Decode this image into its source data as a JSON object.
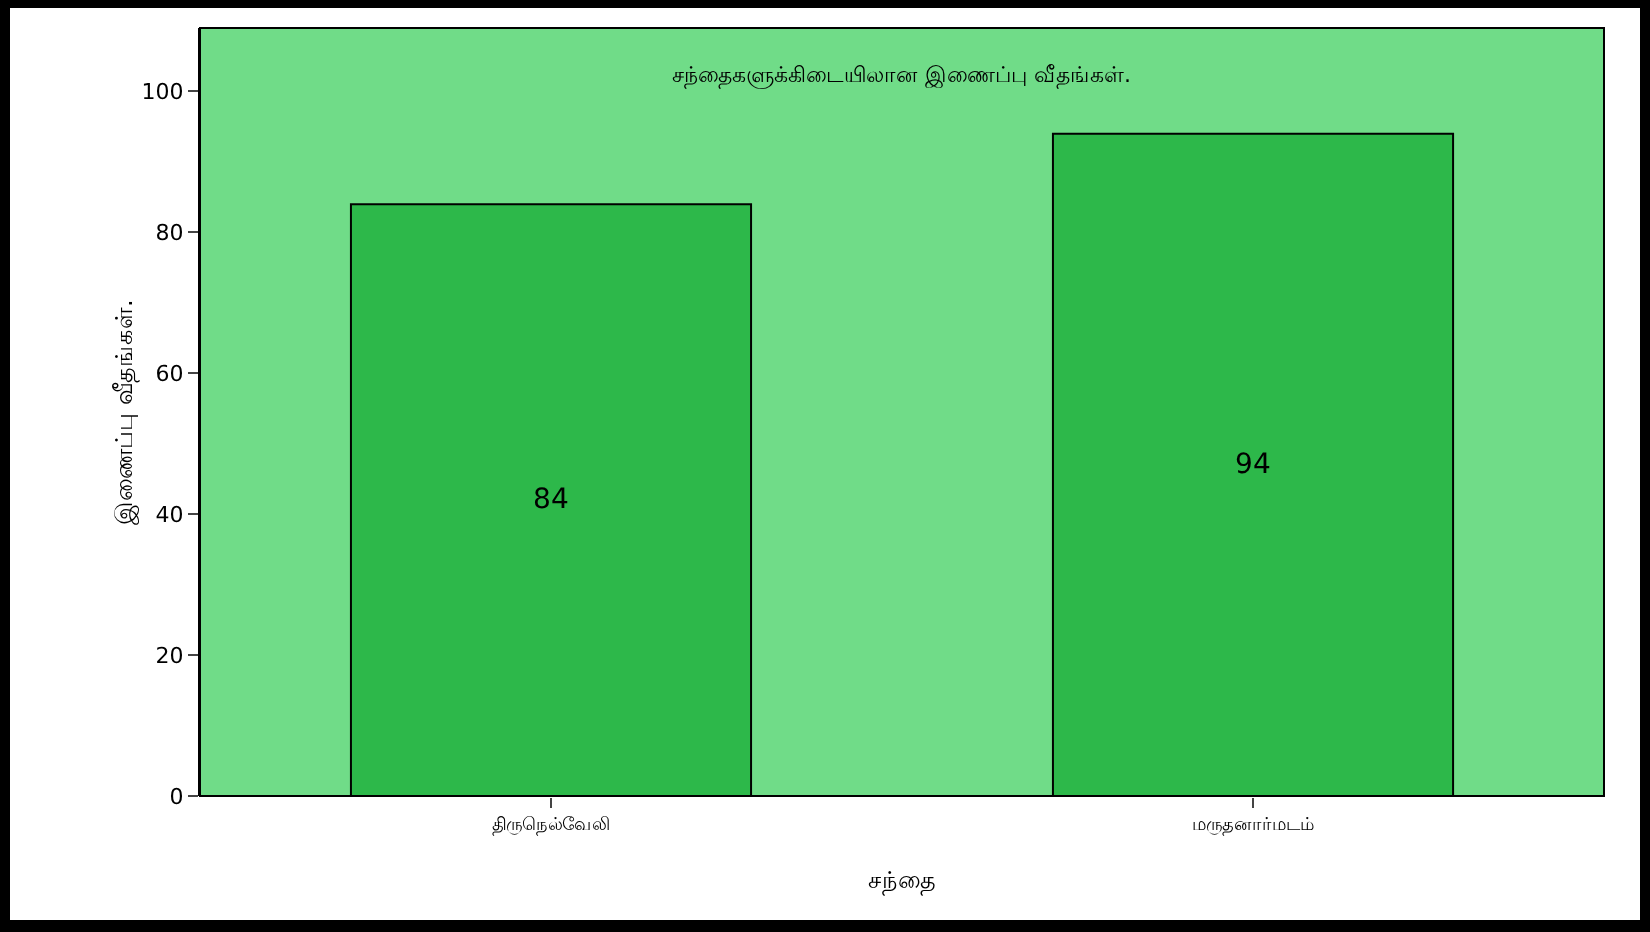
{
  "chart_data": {
    "type": "bar",
    "title": "சந்தைகளுக்கிடையிலான இணைப்பு வீதங்கள்.",
    "xlabel": "சந்தை",
    "ylabel": "இணைப்பு வீதங்கள்.",
    "categories": [
      "திருநெல்வேலி",
      "மருதனார்மடம்"
    ],
    "values": [
      84,
      94
    ],
    "color": "#2db84a",
    "data_labels": true,
    "ylim": [
      0,
      109
    ],
    "yticks": [
      0,
      20,
      40,
      60,
      80,
      100
    ],
    "grid": false
  }
}
